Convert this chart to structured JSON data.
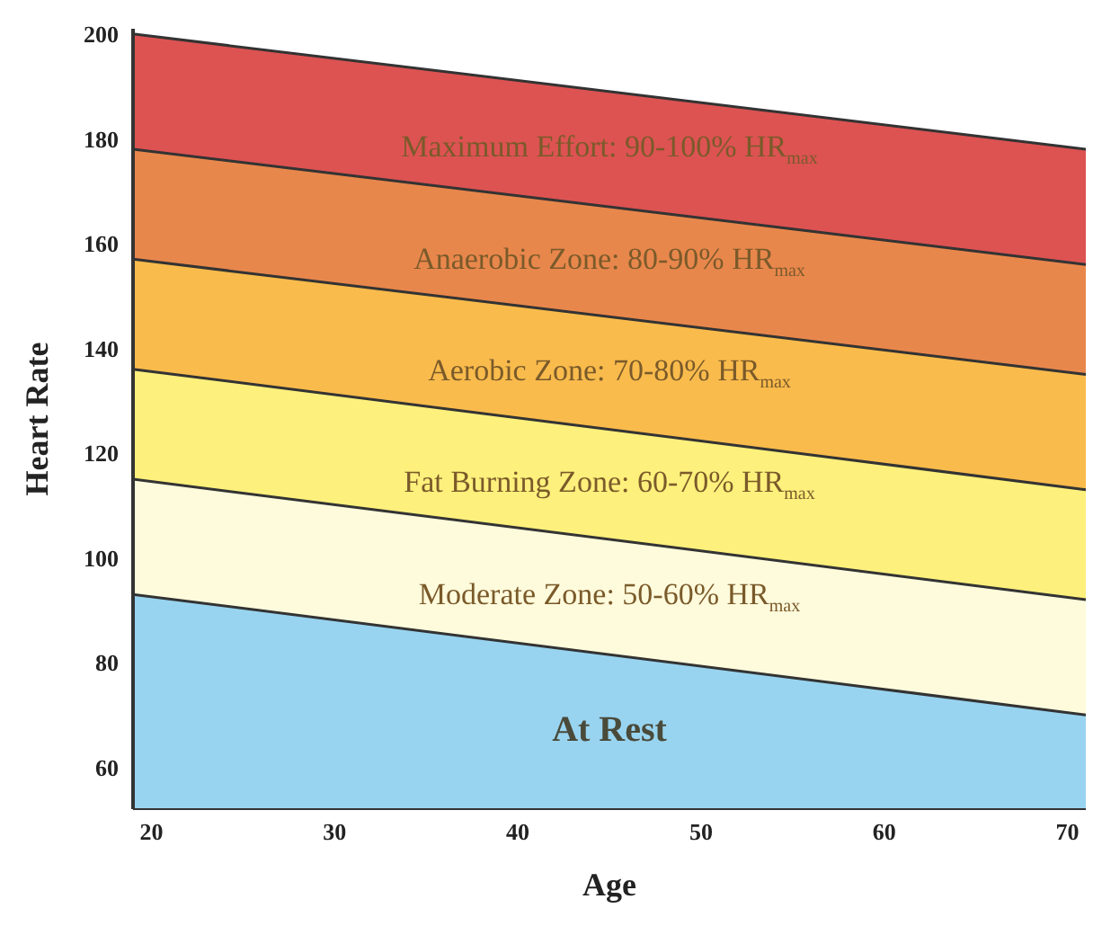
{
  "chart_data": {
    "type": "area",
    "xlabel": "Age",
    "ylabel": "Heart Rate",
    "x": [
      19,
      71
    ],
    "series": [
      {
        "name": "Maximum Effort: 90-100% HR$_{max}$",
        "color": "#dc5352",
        "values": [
          200,
          178
        ]
      },
      {
        "name": "Anaerobic Zone: 80-90% HR$_{max}$",
        "color": "#e8874c",
        "values": [
          178,
          156
        ]
      },
      {
        "name": "Aerobic Zone: 70-80% HR$_{max}$",
        "color": "#f9bb4c",
        "values": [
          157,
          135
        ]
      },
      {
        "name": "Fat Burning Zone: 60-70% HR$_{max}$",
        "color": "#fdf07c",
        "values": [
          136,
          113
        ]
      },
      {
        "name": "Moderate Zone: 50-60% HR$_{max}$",
        "color": "#fefbdc",
        "values": [
          115,
          92
        ]
      },
      {
        "name": "At Rest",
        "color": "#98d4f0",
        "values": [
          93,
          70
        ]
      }
    ],
    "xlim": [
      19,
      71
    ],
    "xticks": [
      20,
      30,
      40,
      50,
      60,
      70
    ],
    "ylim": [
      52,
      201
    ],
    "yticks": [
      60,
      80,
      100,
      120,
      140,
      160,
      180,
      200
    ]
  }
}
